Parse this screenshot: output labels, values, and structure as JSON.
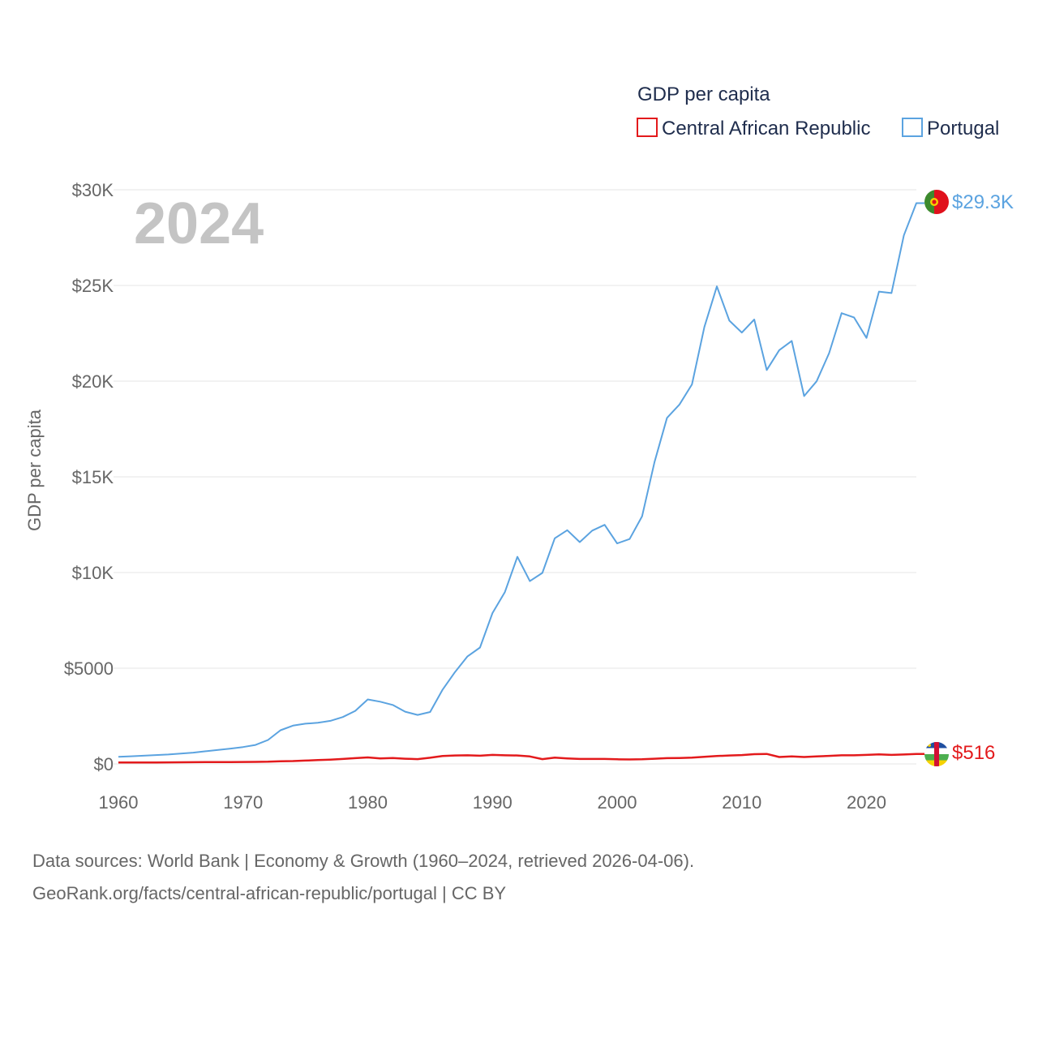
{
  "chart_data": {
    "type": "line",
    "title": "GDP per capita",
    "year_label": "2024",
    "xlabel": "",
    "ylabel": "GDP per capita",
    "xlim": [
      1960,
      2024
    ],
    "ylim": [
      0,
      30000
    ],
    "x_ticks": [
      1960,
      1970,
      1980,
      1990,
      2000,
      2010,
      2020
    ],
    "y_ticks": [
      {
        "value": 0,
        "label": "$0"
      },
      {
        "value": 5000,
        "label": "$5000"
      },
      {
        "value": 10000,
        "label": "$10K"
      },
      {
        "value": 15000,
        "label": "$15K"
      },
      {
        "value": 20000,
        "label": "$20K"
      },
      {
        "value": 25000,
        "label": "$25K"
      },
      {
        "value": 30000,
        "label": "$30K"
      }
    ],
    "grid": true,
    "legend": {
      "title": "GDP per capita",
      "position": "top-right",
      "items": [
        {
          "name": "Central African Republic",
          "color": "#e31a1c"
        },
        {
          "name": "Portugal",
          "color": "#5ba3e0"
        }
      ]
    },
    "x": [
      1960,
      1961,
      1962,
      1963,
      1964,
      1965,
      1966,
      1967,
      1968,
      1969,
      1970,
      1971,
      1972,
      1973,
      1974,
      1975,
      1976,
      1977,
      1978,
      1979,
      1980,
      1981,
      1982,
      1983,
      1984,
      1985,
      1986,
      1987,
      1988,
      1989,
      1990,
      1991,
      1992,
      1993,
      1994,
      1995,
      1996,
      1997,
      1998,
      1999,
      2000,
      2001,
      2002,
      2003,
      2004,
      2005,
      2006,
      2007,
      2008,
      2009,
      2010,
      2011,
      2012,
      2013,
      2014,
      2015,
      2016,
      2017,
      2018,
      2019,
      2020,
      2021,
      2022,
      2023,
      2024
    ],
    "series": [
      {
        "name": "Portugal",
        "color": "#5ba3e0",
        "end_label": "$29.3K",
        "flag": "portugal-flag-icon",
        "values": [
          370,
          400,
          430,
          460,
          490,
          540,
          590,
          660,
          730,
          800,
          880,
          990,
          1250,
          1760,
          2000,
          2100,
          2150,
          2250,
          2450,
          2770,
          3370,
          3250,
          3080,
          2730,
          2560,
          2710,
          3880,
          4800,
          5620,
          6080,
          7880,
          8980,
          10820,
          9550,
          9980,
          11790,
          12210,
          11590,
          12190,
          12490,
          11520,
          11750,
          12940,
          15770,
          18080,
          18780,
          19830,
          22830,
          24950,
          23160,
          22540,
          23220,
          20580,
          21620,
          22100,
          19220,
          19990,
          21460,
          23550,
          23330,
          22260,
          24680,
          24600,
          27620,
          29300
        ]
      },
      {
        "name": "Central African Republic",
        "color": "#e31a1c",
        "end_label": "$516",
        "flag": "car-flag-icon",
        "values": [
          70,
          72,
          74,
          76,
          80,
          85,
          88,
          92,
          95,
          98,
          102,
          106,
          115,
          140,
          148,
          175,
          200,
          225,
          260,
          300,
          340,
          290,
          305,
          270,
          250,
          320,
          410,
          440,
          450,
          430,
          470,
          450,
          440,
          390,
          250,
          330,
          290,
          260,
          260,
          260,
          240,
          235,
          240,
          270,
          300,
          310,
          330,
          370,
          410,
          440,
          460,
          510,
          520,
          360,
          390,
          360,
          390,
          420,
          450,
          450,
          470,
          500,
          470,
          490,
          516
        ]
      }
    ]
  },
  "footer": {
    "line1": "Data sources: World Bank | Economy & Growth (1960–2024, retrieved 2026-04-06).",
    "line2": "GeoRank.org/facts/central-african-republic/portugal | CC BY"
  }
}
